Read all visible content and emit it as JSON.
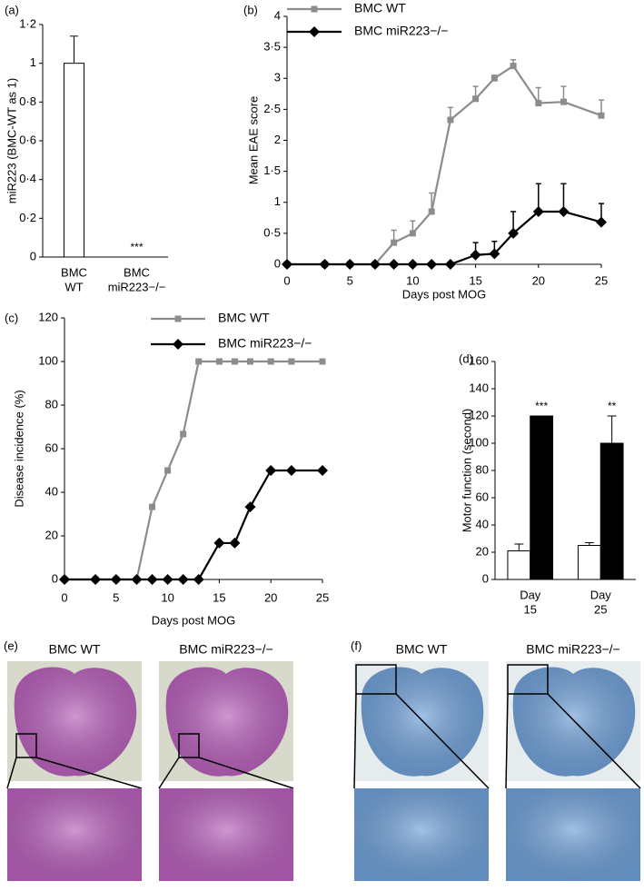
{
  "chart_data": [
    {
      "label": "(a)",
      "type": "bar",
      "categories": [
        [
          "BMC",
          "WT"
        ],
        [
          "BMC",
          "miR223−/−"
        ]
      ],
      "values": [
        1,
        0
      ],
      "errors": [
        0.14,
        0
      ],
      "color": "#ffffff",
      "significance": [
        null,
        "***"
      ],
      "ylabel": "miR223 (BMC-WT as 1)",
      "ylim": [
        0,
        1.2
      ],
      "yticks": [
        0,
        {
          "value": 0.2,
          "label": "0·2"
        },
        {
          "value": 0.4,
          "label": "0·4"
        },
        {
          "value": 0.6,
          "label": "0·6"
        },
        {
          "value": 0.8,
          "label": "0·8"
        },
        1,
        {
          "value": 1.2,
          "label": "1·2"
        }
      ]
    },
    {
      "label": "(b)",
      "type": "line",
      "x": [
        0,
        3,
        5,
        7,
        8.5,
        10,
        11.5,
        13,
        15,
        16.5,
        18,
        20,
        22,
        25
      ],
      "series": [
        {
          "name": "BMC WT",
          "color": "#8c8c8c",
          "marker": "square",
          "values": [
            0,
            0,
            0,
            0,
            0.35,
            0.5,
            0.85,
            2.33,
            2.67,
            3.0,
            3.2,
            2.6,
            2.62,
            2.4
          ],
          "errors": [
            0,
            0,
            0,
            0,
            0.2,
            0.2,
            0.3,
            0.2,
            0.2,
            0.05,
            0.1,
            0.25,
            0.25,
            0.25
          ]
        },
        {
          "name": "BMC miR223−/−",
          "color": "#000000",
          "marker": "diamond",
          "values": [
            0,
            0,
            0,
            0,
            0,
            0,
            0,
            0,
            0.15,
            0.17,
            0.5,
            0.85,
            0.85,
            0.68
          ],
          "errors": [
            0,
            0,
            0,
            0,
            0,
            0,
            0,
            0,
            0.2,
            0.2,
            0.35,
            0.45,
            0.45,
            0.3
          ]
        }
      ],
      "xlabel": "Days post MOG",
      "ylabel": "Mean EAE score",
      "xlim": [
        0,
        25
      ],
      "xticks": [
        0,
        5,
        10,
        15,
        20,
        25
      ],
      "ylim": [
        0,
        4
      ],
      "yticks": [
        0,
        {
          "value": 0.5,
          "label": "0·5"
        },
        1,
        {
          "value": 1.5,
          "label": "1·5"
        },
        2,
        {
          "value": 2.5,
          "label": "2·5"
        },
        3,
        {
          "value": 3.5,
          "label": "3·5"
        },
        4
      ]
    },
    {
      "label": "(c)",
      "type": "line",
      "x": [
        0,
        3,
        5,
        7,
        8.5,
        10,
        11.5,
        13,
        15,
        16.5,
        18,
        20,
        22,
        25
      ],
      "series": [
        {
          "name": "BMC WT",
          "color": "#8c8c8c",
          "marker": "square",
          "values": [
            0,
            0,
            0,
            0,
            33.3,
            50,
            66.7,
            100,
            100,
            100,
            100,
            100,
            100,
            100
          ]
        },
        {
          "name": "BMC miR223−/−",
          "color": "#000000",
          "marker": "diamond",
          "values": [
            0,
            0,
            0,
            0,
            0,
            0,
            0,
            0,
            16.7,
            16.7,
            33.3,
            50,
            50,
            50
          ]
        }
      ],
      "xlabel": "Days post MOG",
      "ylabel": "Disease incidence (%)",
      "xlim": [
        0,
        25
      ],
      "xticks": [
        0,
        5,
        10,
        15,
        20,
        25
      ],
      "ylim": [
        0,
        120
      ],
      "yticks": [
        0,
        20,
        40,
        60,
        80,
        100,
        120
      ]
    },
    {
      "label": "(d)",
      "type": "bar",
      "categories": [
        [
          "Day",
          "15"
        ],
        [
          "Day",
          "25"
        ]
      ],
      "series": [
        {
          "color": "#ffffff",
          "values": [
            21,
            25
          ],
          "errors": [
            5,
            2
          ]
        },
        {
          "color": "#000000",
          "values": [
            120,
            100
          ],
          "errors": [
            0,
            20
          ]
        }
      ],
      "significance": [
        "***",
        "**"
      ],
      "ylabel": "Motor function (second)",
      "ylim": [
        0,
        160
      ],
      "yticks": [
        0,
        20,
        40,
        60,
        80,
        100,
        120,
        140,
        160
      ]
    }
  ],
  "micrographs": [
    {
      "label": "(e)",
      "stain": "#b65fb9",
      "columns": [
        "BMC WT",
        "BMC miR223−/−"
      ]
    },
    {
      "label": "(f)",
      "stain": "#6f9fd6",
      "columns": [
        "BMC WT",
        "BMC miR223−/−"
      ]
    }
  ]
}
